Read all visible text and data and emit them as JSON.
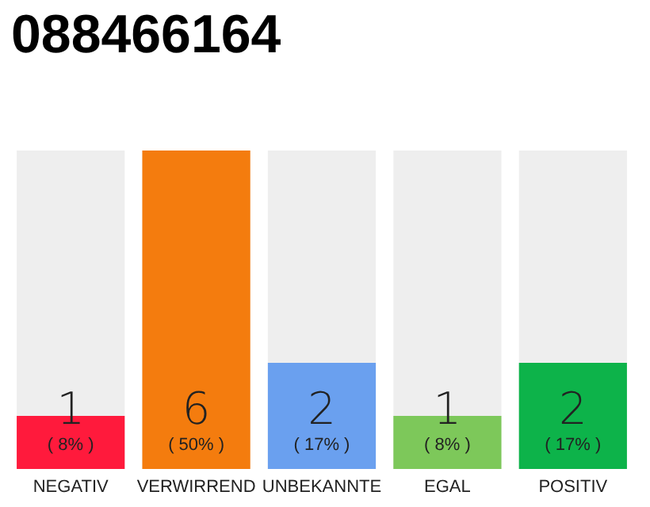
{
  "chart_data": {
    "type": "bar",
    "title": "088466164",
    "categories": [
      "NEGATIV",
      "VERWIRREND",
      "UNBEKANNTE",
      "EGAL",
      "POSITIV"
    ],
    "values": [
      1,
      6,
      2,
      1,
      2
    ],
    "colors": [
      "#ff1a3c",
      "#f47c0e",
      "#6aa0ef",
      "#7dc85a",
      "#0db34a"
    ],
    "data_labels": true,
    "annotations": [
      "( 8% )",
      "( 50% )",
      "( 17% )",
      "( 8% )",
      "( 17% )"
    ]
  }
}
